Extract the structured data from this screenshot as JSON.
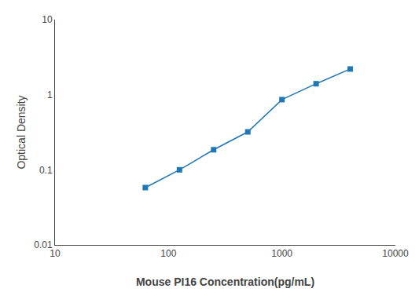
{
  "chart_data": {
    "type": "line",
    "x": [
      62.5,
      125,
      250,
      500,
      1000,
      2000,
      4000
    ],
    "values": [
      0.058,
      0.1,
      0.185,
      0.32,
      0.86,
      1.4,
      2.2
    ],
    "xlabel": "Mouse PI16 Concentration(pg/mL)",
    "ylabel": "Optical Density",
    "xlim": [
      10,
      10000
    ],
    "ylim": [
      0.01,
      10
    ],
    "xticks": [
      10,
      100,
      1000,
      10000
    ],
    "yticks": [
      0.01,
      0.1,
      1,
      10
    ],
    "log": true,
    "marker": "square",
    "grid": false
  }
}
